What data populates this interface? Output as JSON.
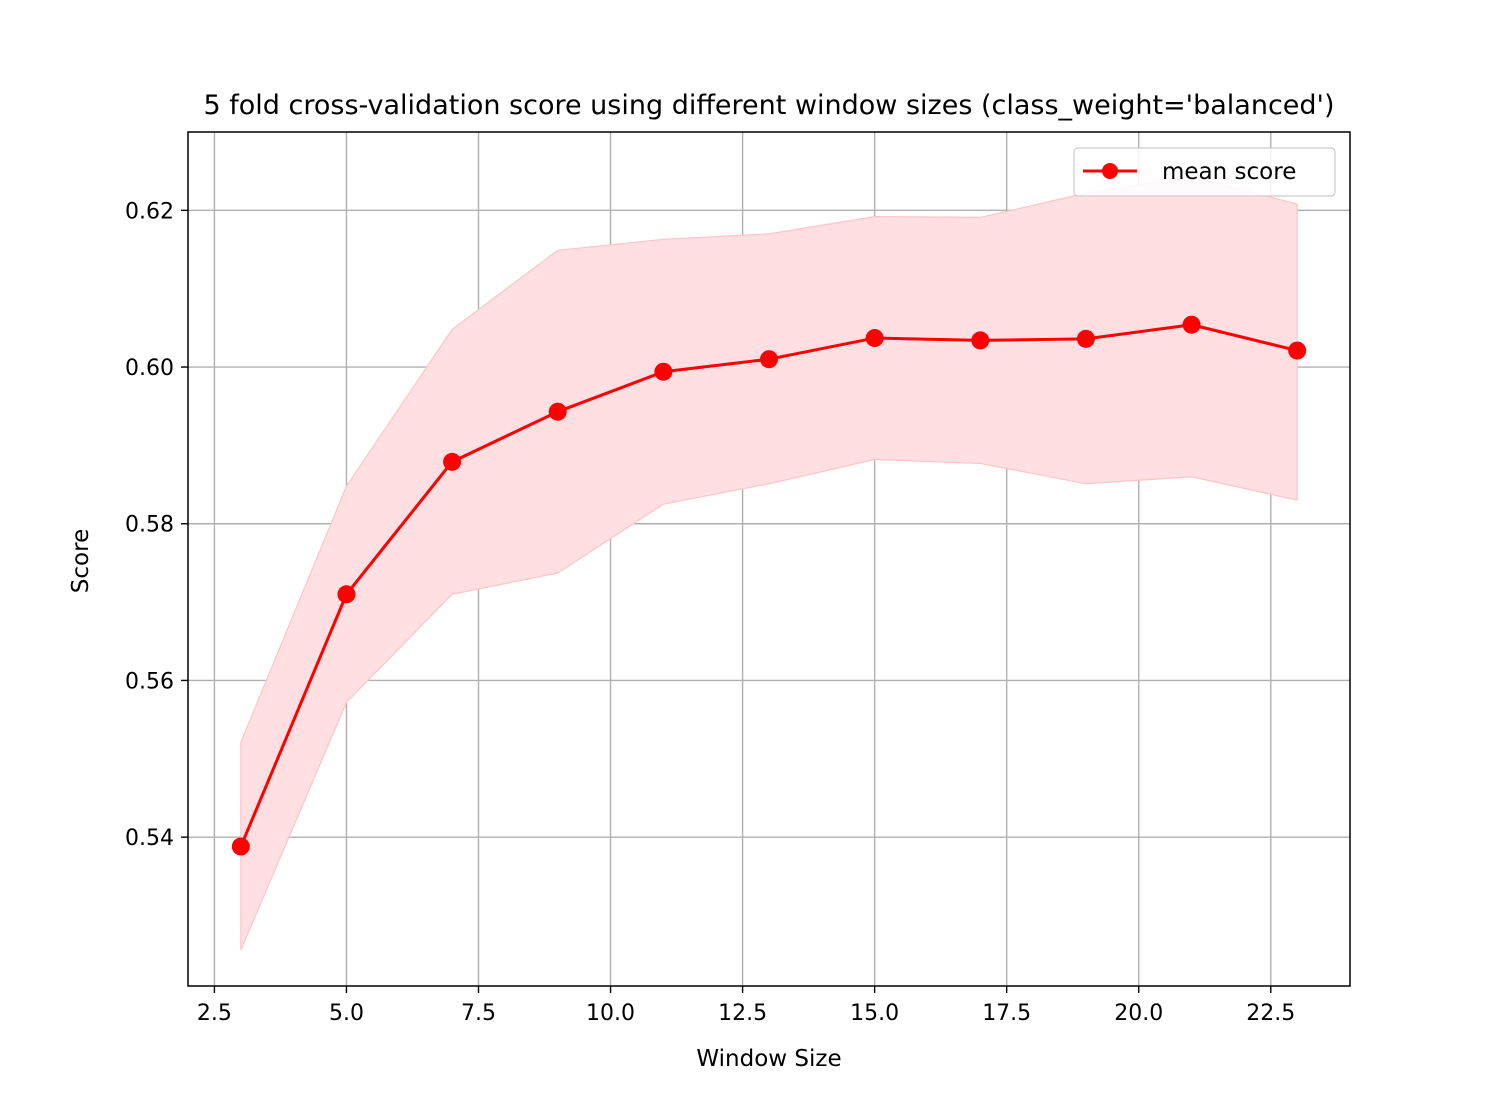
{
  "chart_data": {
    "type": "line",
    "title": "5 fold cross-validation score using different window sizes (class_weight='balanced')",
    "xlabel": "Window Size",
    "ylabel": "Score",
    "xlim": [
      2.0,
      24.0
    ],
    "ylim": [
      0.521,
      0.63
    ],
    "x_ticks": [
      2.5,
      5.0,
      7.5,
      10.0,
      12.5,
      15.0,
      17.5,
      20.0,
      22.5
    ],
    "x_tick_labels": [
      "2.5",
      "5.0",
      "7.5",
      "10.0",
      "12.5",
      "15.0",
      "17.5",
      "20.0",
      "22.5"
    ],
    "y_ticks": [
      0.54,
      0.56,
      0.58,
      0.6,
      0.62
    ],
    "y_tick_labels": [
      "0.54",
      "0.56",
      "0.58",
      "0.60",
      "0.62"
    ],
    "grid": true,
    "legend_position": "top-right",
    "series": [
      {
        "name": "mean score",
        "color": "#ff0000",
        "marker": "circle",
        "x": [
          3,
          5,
          7,
          9,
          11,
          13,
          15,
          17,
          19,
          21,
          23
        ],
        "y": [
          0.5388,
          0.571,
          0.5879,
          0.5943,
          0.5994,
          0.601,
          0.6037,
          0.6034,
          0.6036,
          0.6054,
          0.6021
        ],
        "band_upper": [
          0.5521,
          0.5848,
          0.6048,
          0.6149,
          0.6163,
          0.617,
          0.6192,
          0.6191,
          0.6222,
          0.6243,
          0.6208
        ],
        "band_lower": [
          0.5256,
          0.5572,
          0.571,
          0.5737,
          0.5825,
          0.5851,
          0.5882,
          0.5877,
          0.5851,
          0.586,
          0.583
        ],
        "band_color": "#ffdfe1"
      }
    ]
  }
}
